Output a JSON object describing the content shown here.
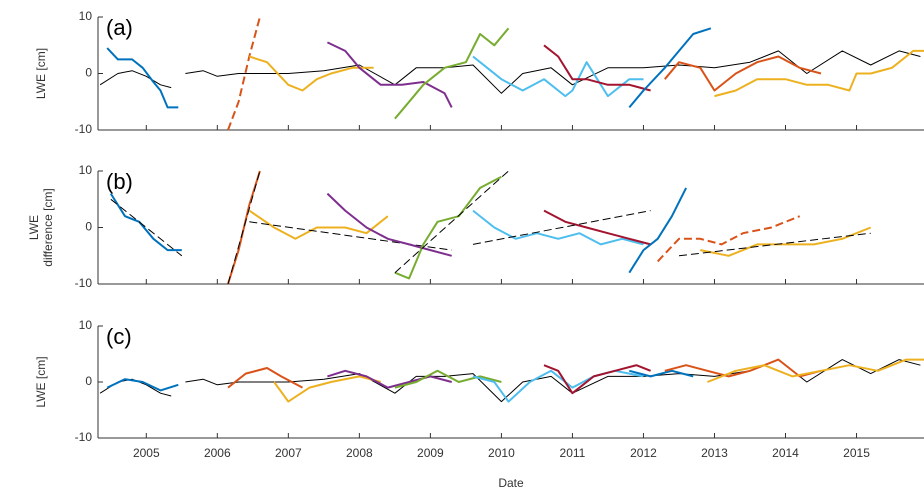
{
  "chart_data": [
    {
      "type": "line",
      "label": "(a)",
      "ylabel": [
        "LWE [cm]"
      ],
      "xlim": [
        2004.32,
        2015.95
      ],
      "ylim": [
        -10,
        10
      ],
      "yticks": [
        -10,
        0,
        10
      ],
      "series": [
        {
          "color": "#000000",
          "width": 1,
          "x": [
            2004.35,
            2004.6,
            2004.8,
            2005.0,
            2005.2,
            2005.35,
            2005.45,
            2005.55,
            2005.8,
            2006.0,
            2006.3,
            2006.6,
            2007.0,
            2007.5,
            2008.0,
            2008.5,
            2008.8,
            2009.2,
            2009.6,
            2010.0,
            2010.3,
            2010.7,
            2011.0,
            2011.5,
            2012.0,
            2012.5,
            2013.0,
            2013.5,
            2013.9,
            2014.3,
            2014.8,
            2015.2,
            2015.6,
            2015.9
          ],
          "values": [
            -2,
            0,
            0.5,
            -0.5,
            -2,
            -2.5,
            null,
            0,
            0.5,
            -0.5,
            0,
            0,
            0,
            0.5,
            1.5,
            -2,
            1,
            1,
            1.5,
            -3.5,
            0,
            1,
            -2,
            1,
            1,
            1.5,
            1,
            2,
            4,
            0,
            4,
            1.5,
            4,
            3
          ]
        },
        {
          "color": "#0072bd",
          "x": [
            2004.45,
            2004.6,
            2004.8,
            2004.95,
            2005.1,
            2005.2,
            2005.3,
            2005.45
          ],
          "values": [
            4.5,
            2.5,
            2.5,
            1,
            -1.5,
            -3,
            -6,
            -6
          ]
        },
        {
          "color": "#d95319",
          "dash": true,
          "x": [
            2006.15,
            2006.3,
            2006.45,
            2006.6
          ],
          "values": [
            -10,
            -5,
            3,
            10
          ]
        },
        {
          "color": "#edb120",
          "x": [
            2006.45,
            2006.7,
            2007.0,
            2007.2,
            2007.4,
            2007.6,
            2007.9,
            2008.2
          ],
          "values": [
            3,
            2,
            -2,
            -3,
            -1,
            0,
            1,
            1
          ]
        },
        {
          "color": "#7e2f8e",
          "x": [
            2007.55,
            2007.8,
            2008.0,
            2008.3,
            2008.6,
            2008.9,
            2009.2,
            2009.3
          ],
          "values": [
            5.5,
            4,
            1,
            -2,
            -2,
            -1.5,
            -3.5,
            -6
          ]
        },
        {
          "color": "#77ac30",
          "x": [
            2008.5,
            2008.7,
            2008.9,
            2009.2,
            2009.5,
            2009.7,
            2009.9,
            2010.1
          ],
          "values": [
            -8,
            -5,
            -2,
            1,
            2,
            7,
            5,
            8
          ]
        },
        {
          "color": "#4dbeee",
          "x": [
            2009.6,
            2009.8,
            2010.0,
            2010.3,
            2010.6,
            2010.9,
            2011.0,
            2011.2,
            2011.5,
            2011.8,
            2012.0
          ],
          "values": [
            3,
            1,
            -1,
            -3,
            -1,
            -4,
            -3,
            2,
            -4,
            -1,
            -1
          ]
        },
        {
          "color": "#a2142f",
          "x": [
            2010.6,
            2010.8,
            2011.0,
            2011.2,
            2011.5,
            2011.8,
            2012.1
          ],
          "values": [
            5,
            3,
            -1,
            -1,
            -2,
            -2,
            -3
          ]
        },
        {
          "color": "#0072bd",
          "x": [
            2011.8,
            2012.0,
            2012.3,
            2012.5,
            2012.7,
            2012.95
          ],
          "values": [
            -6,
            -3,
            1,
            4,
            7,
            8
          ]
        },
        {
          "color": "#d95319",
          "x": [
            2012.3,
            2012.5,
            2012.8,
            2013.0,
            2013.3,
            2013.6,
            2013.9,
            2014.2,
            2014.5
          ],
          "values": [
            -1,
            2,
            1,
            -3,
            0,
            2,
            3,
            1,
            0
          ]
        },
        {
          "color": "#edb120",
          "x": [
            2013.0,
            2013.3,
            2013.6,
            2014.0,
            2014.3,
            2014.6,
            2014.9,
            2015.0,
            2015.2,
            2015.5,
            2015.8,
            2015.95
          ],
          "values": [
            -4,
            -3,
            -1,
            -1,
            -2,
            -2,
            -3,
            0,
            0,
            1,
            4,
            4
          ]
        }
      ]
    },
    {
      "type": "line",
      "label": "(b)",
      "ylabel": [
        "LWE",
        "difference [cm]"
      ],
      "xlim": [
        2004.32,
        2015.95
      ],
      "ylim": [
        -10,
        10
      ],
      "yticks": [
        -10,
        0,
        10
      ],
      "series": [
        {
          "color": "#0072bd",
          "x": [
            2004.5,
            2004.7,
            2004.9,
            2005.1,
            2005.3,
            2005.5
          ],
          "values": [
            6,
            2,
            1,
            -2,
            -4,
            -4
          ]
        },
        {
          "color": "#000000",
          "dash": true,
          "width": 1,
          "x": [
            2004.5,
            2005.5
          ],
          "values": [
            5,
            -5
          ]
        },
        {
          "color": "#d95319",
          "x": [
            2006.15,
            2006.3,
            2006.45,
            2006.6
          ],
          "values": [
            -10,
            -4,
            4,
            10
          ]
        },
        {
          "color": "#000000",
          "dash": true,
          "width": 1,
          "x": [
            2006.15,
            2006.6
          ],
          "values": [
            -10,
            10
          ]
        },
        {
          "color": "#edb120",
          "x": [
            2006.45,
            2006.8,
            2007.1,
            2007.4,
            2007.8,
            2008.1,
            2008.4
          ],
          "values": [
            3,
            0,
            -2,
            0,
            0,
            -1,
            2
          ]
        },
        {
          "color": "#000000",
          "dash": true,
          "width": 1,
          "x": [
            2006.45,
            2009.3
          ],
          "values": [
            1,
            -4
          ]
        },
        {
          "color": "#7e2f8e",
          "x": [
            2007.55,
            2007.8,
            2008.1,
            2008.4,
            2008.7,
            2009.0,
            2009.3
          ],
          "values": [
            6,
            3,
            0,
            -2,
            -3,
            -4,
            -5
          ]
        },
        {
          "color": "#77ac30",
          "x": [
            2008.5,
            2008.7,
            2008.9,
            2009.1,
            2009.4,
            2009.7,
            2010.0
          ],
          "values": [
            -8,
            -9,
            -3,
            1,
            2,
            7,
            9
          ]
        },
        {
          "color": "#000000",
          "dash": true,
          "width": 1,
          "x": [
            2008.5,
            2010.1
          ],
          "values": [
            -8,
            10
          ]
        },
        {
          "color": "#4dbeee",
          "x": [
            2009.6,
            2009.9,
            2010.2,
            2010.5,
            2010.8,
            2011.1,
            2011.4,
            2011.7,
            2012.0
          ],
          "values": [
            3,
            0,
            -2,
            -1,
            -2,
            -1,
            -3,
            -2,
            -3
          ]
        },
        {
          "color": "#a2142f",
          "x": [
            2010.6,
            2010.9,
            2011.2,
            2011.5,
            2011.8,
            2012.1
          ],
          "values": [
            3,
            1,
            0,
            -1,
            -2,
            -3
          ]
        },
        {
          "color": "#000000",
          "dash": true,
          "width": 1,
          "x": [
            2009.6,
            2012.1
          ],
          "values": [
            -3,
            3
          ]
        },
        {
          "color": "#0072bd",
          "x": [
            2011.8,
            2012.0,
            2012.2,
            2012.4,
            2012.6
          ],
          "values": [
            -8,
            -4,
            -2,
            2,
            7
          ]
        },
        {
          "color": "#d95319",
          "dash": true,
          "x": [
            2012.2,
            2012.5,
            2012.8,
            2013.1,
            2013.4,
            2013.8,
            2014.2
          ],
          "values": [
            -6,
            -2,
            -2,
            -3,
            -1,
            0,
            2
          ]
        },
        {
          "color": "#edb120",
          "x": [
            2012.8,
            2013.2,
            2013.6,
            2014.0,
            2014.4,
            2014.8,
            2015.2
          ],
          "values": [
            -4,
            -5,
            -3,
            -3,
            -3,
            -2,
            0
          ]
        },
        {
          "color": "#000000",
          "dash": true,
          "width": 1,
          "x": [
            2012.5,
            2015.2
          ],
          "values": [
            -5,
            -1
          ]
        }
      ]
    },
    {
      "type": "line",
      "label": "(c)",
      "ylabel": [
        "LWE [cm]"
      ],
      "xlabel": "Date",
      "xlim": [
        2004.32,
        2015.95
      ],
      "ylim": [
        -10,
        10
      ],
      "yticks": [
        -10,
        0,
        10
      ],
      "xticks": [
        2005,
        2006,
        2007,
        2008,
        2009,
        2010,
        2011,
        2012,
        2013,
        2014,
        2015
      ],
      "series": [
        {
          "color": "#000000",
          "width": 1,
          "x": [
            2004.35,
            2004.6,
            2004.8,
            2005.0,
            2005.2,
            2005.35,
            2005.45,
            2005.55,
            2005.8,
            2006.0,
            2006.3,
            2006.6,
            2007.0,
            2007.5,
            2008.0,
            2008.5,
            2008.8,
            2009.2,
            2009.6,
            2010.0,
            2010.3,
            2010.7,
            2011.0,
            2011.5,
            2012.0,
            2012.5,
            2013.0,
            2013.5,
            2013.9,
            2014.3,
            2014.8,
            2015.2,
            2015.6,
            2015.9
          ],
          "values": [
            -2,
            0,
            0.5,
            -0.5,
            -2,
            -2.5,
            null,
            0,
            0.5,
            -0.5,
            0,
            0,
            0,
            0.5,
            1.5,
            -2,
            1,
            1,
            1.5,
            -3.5,
            0,
            1,
            -2,
            1,
            1,
            1.5,
            1,
            2,
            4,
            0,
            4,
            1.5,
            4,
            3
          ]
        },
        {
          "color": "#0072bd",
          "x": [
            2004.45,
            2004.7,
            2004.95,
            2005.2,
            2005.45
          ],
          "values": [
            -1,
            0.5,
            0,
            -1.5,
            -0.5
          ]
        },
        {
          "color": "#d95319",
          "x": [
            2006.15,
            2006.4,
            2006.7,
            2006.9,
            2007.2
          ],
          "values": [
            -1,
            1.5,
            2.5,
            1,
            -1
          ]
        },
        {
          "color": "#edb120",
          "x": [
            2006.8,
            2007.0,
            2007.3,
            2007.6,
            2008.0,
            2008.3
          ],
          "values": [
            0,
            -3.5,
            -1,
            0,
            1,
            0
          ]
        },
        {
          "color": "#7e2f8e",
          "x": [
            2007.55,
            2007.8,
            2008.1,
            2008.4,
            2008.7,
            2009.0,
            2009.3
          ],
          "values": [
            1,
            2,
            1,
            -1,
            0,
            1,
            0
          ]
        },
        {
          "color": "#77ac30",
          "x": [
            2008.5,
            2008.8,
            2009.1,
            2009.4,
            2009.7,
            2010.0
          ],
          "values": [
            -1,
            0,
            2,
            0,
            1,
            0
          ]
        },
        {
          "color": "#4dbeee",
          "x": [
            2009.6,
            2009.9,
            2010.1,
            2010.4,
            2010.7,
            2011.0,
            2011.3,
            2011.6,
            2012.0
          ],
          "values": [
            1,
            0,
            -3.5,
            0,
            2,
            -1,
            1,
            2,
            1
          ]
        },
        {
          "color": "#a2142f",
          "x": [
            2010.6,
            2010.8,
            2011.0,
            2011.3,
            2011.6,
            2011.9,
            2012.1
          ],
          "values": [
            3,
            2,
            -2,
            1,
            2,
            3,
            2
          ]
        },
        {
          "color": "#0072bd",
          "x": [
            2011.8,
            2012.1,
            2012.4,
            2012.7
          ],
          "values": [
            2,
            1,
            2,
            1
          ]
        },
        {
          "color": "#d95319",
          "x": [
            2012.3,
            2012.6,
            2012.9,
            2013.2,
            2013.5,
            2013.9,
            2014.2,
            2014.5
          ],
          "values": [
            2,
            3,
            2,
            1,
            2,
            4,
            1,
            2
          ]
        },
        {
          "color": "#edb120",
          "x": [
            2012.9,
            2013.3,
            2013.7,
            2014.1,
            2014.5,
            2014.9,
            2015.3,
            2015.7,
            2015.95
          ],
          "values": [
            0,
            2,
            3,
            1,
            2,
            3,
            2,
            4,
            4
          ]
        }
      ]
    }
  ]
}
